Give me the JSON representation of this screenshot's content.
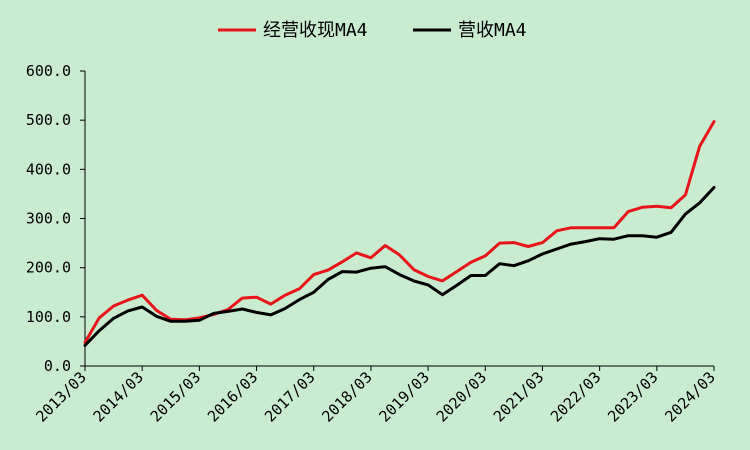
{
  "chart_data": {
    "type": "line",
    "title": "",
    "xlabel": "",
    "ylabel": "",
    "ylim": [
      0,
      600
    ],
    "y_ticks": [
      "0.0",
      "100.0",
      "200.0",
      "300.0",
      "400.0",
      "500.0",
      "600.0"
    ],
    "x_ticks": [
      "2013/03",
      "2014/03",
      "2015/03",
      "2016/03",
      "2017/03",
      "2018/03",
      "2019/03",
      "2020/03",
      "2021/03",
      "2022/03",
      "2023/03",
      "2024/03"
    ],
    "legend_position": "top",
    "grid": false,
    "x": [
      "2013/03",
      "2013/06",
      "2013/09",
      "2013/12",
      "2014/03",
      "2014/06",
      "2014/09",
      "2014/12",
      "2015/03",
      "2015/06",
      "2015/09",
      "2015/12",
      "2016/03",
      "2016/06",
      "2016/09",
      "2016/12",
      "2017/03",
      "2017/06",
      "2017/09",
      "2017/12",
      "2018/03",
      "2018/06",
      "2018/09",
      "2018/12",
      "2019/03",
      "2019/06",
      "2019/09",
      "2019/12",
      "2020/03",
      "2020/06",
      "2020/09",
      "2020/12",
      "2021/03",
      "2021/06",
      "2021/09",
      "2021/12",
      "2022/03",
      "2022/06",
      "2022/09",
      "2022/12",
      "2023/03",
      "2023/06",
      "2023/09",
      "2023/12",
      "2024/03"
    ],
    "series": [
      {
        "name": "经营收现MA4",
        "color": "#e8141a",
        "values": [
          48,
          98,
          122,
          134,
          144,
          113,
          95,
          94,
          98,
          105,
          115,
          138,
          140,
          126,
          144,
          157,
          186,
          195,
          212,
          230,
          220,
          245,
          226,
          196,
          182,
          173,
          192,
          211,
          224,
          250,
          251,
          243,
          251,
          275,
          281,
          281,
          281,
          281,
          314,
          323,
          325,
          322,
          348,
          447,
          497
        ]
      },
      {
        "name": "营收MA4",
        "color": "#000000",
        "values": [
          42,
          72,
          97,
          112,
          120,
          101,
          91,
          91,
          93,
          107,
          111,
          116,
          109,
          104,
          117,
          135,
          150,
          176,
          192,
          191,
          199,
          202,
          186,
          173,
          165,
          145,
          164,
          184,
          184,
          208,
          204,
          214,
          228,
          238,
          248,
          253,
          259,
          258,
          265,
          265,
          262,
          272,
          309,
          332,
          363
        ]
      }
    ]
  }
}
